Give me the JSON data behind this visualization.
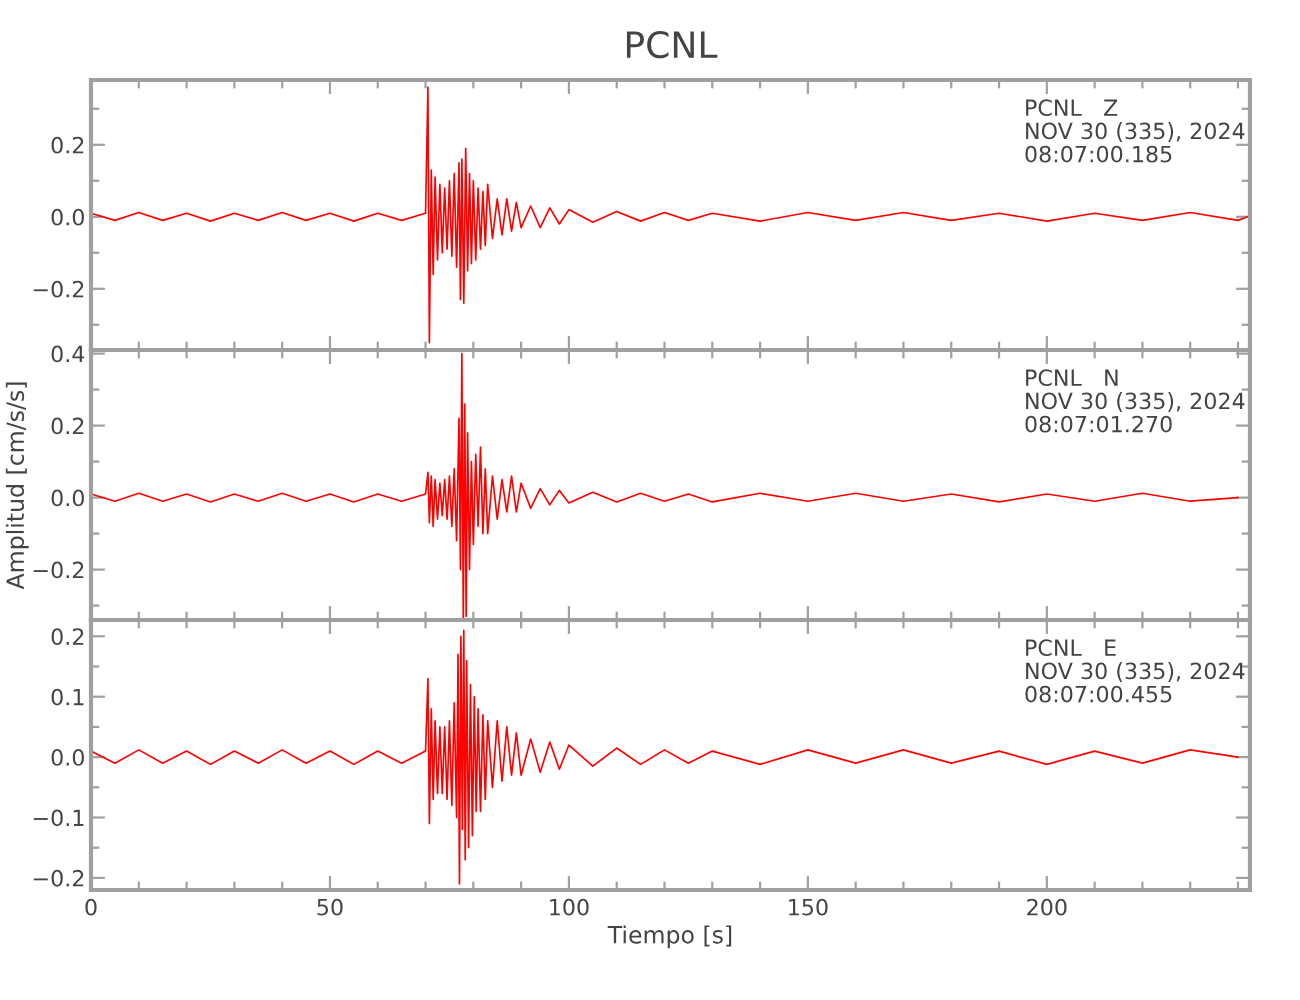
{
  "chart_data": [
    {
      "type": "line",
      "title": "PCNL",
      "tick_labels": "y",
      "xlim": [
        0,
        242.5
      ],
      "ylim": [
        -0.37,
        0.38
      ],
      "xticks": [
        0,
        {
          "value": 10,
          "label": null
        },
        {
          "value": 20,
          "label": null
        },
        {
          "value": 30,
          "label": null
        },
        {
          "value": 40,
          "label": null
        },
        50,
        {
          "value": 60,
          "label": null
        },
        {
          "value": 70,
          "label": null
        },
        {
          "value": 80,
          "label": null
        },
        {
          "value": 90,
          "label": null
        },
        100,
        {
          "value": 110,
          "label": null
        },
        {
          "value": 120,
          "label": null
        },
        {
          "value": 130,
          "label": null
        },
        {
          "value": 140,
          "label": null
        },
        150,
        {
          "value": 160,
          "label": null
        },
        {
          "value": 170,
          "label": null
        },
        {
          "value": 180,
          "label": null
        },
        {
          "value": 190,
          "label": null
        },
        200,
        {
          "value": 210,
          "label": null
        },
        {
          "value": 220,
          "label": null
        },
        {
          "value": 230,
          "label": null
        },
        {
          "value": 240,
          "label": null
        }
      ],
      "yticks": [
        {
          "value": -0.3,
          "label": null
        },
        {
          "value": -0.2,
          "label": "−0.2"
        },
        {
          "value": -0.1,
          "label": null
        },
        {
          "value": 0,
          "label": "0.0"
        },
        {
          "value": 0.1,
          "label": null
        },
        0.2,
        {
          "value": 0.3,
          "label": null
        }
      ],
      "annotations": [
        "PCNL   Z\nNOV 30 (335), 2024\n08:07:00.185"
      ],
      "series": [
        {
          "color": "#ff0000",
          "x": [
            0,
            5,
            10,
            15,
            20,
            25,
            30,
            35,
            40,
            45,
            50,
            55,
            60,
            65,
            70,
            70.5,
            70.8,
            71.2,
            71.6,
            72,
            72.5,
            73,
            73.5,
            74,
            74.5,
            75,
            75.5,
            76,
            76.5,
            77,
            77.3,
            77.6,
            78,
            78.4,
            78.8,
            79.2,
            79.6,
            80,
            80.5,
            81,
            81.5,
            82,
            82.5,
            83,
            84,
            85,
            86,
            87,
            88,
            89,
            90,
            92,
            94,
            96,
            98,
            100,
            105,
            110,
            115,
            120,
            125,
            130,
            140,
            150,
            160,
            170,
            180,
            190,
            200,
            210,
            220,
            230,
            240,
            242
          ],
          "values": [
            0.01,
            -0.01,
            0.012,
            -0.01,
            0.01,
            -0.012,
            0.01,
            -0.01,
            0.012,
            -0.01,
            0.01,
            -0.012,
            0.01,
            -0.01,
            0.01,
            0.36,
            -0.35,
            0.13,
            -0.16,
            0.11,
            -0.12,
            0.09,
            -0.1,
            0.08,
            -0.09,
            0.1,
            -0.11,
            0.12,
            -0.14,
            0.15,
            -0.23,
            0.16,
            -0.24,
            0.19,
            -0.15,
            0.12,
            -0.13,
            0.1,
            -0.12,
            0.08,
            -0.09,
            0.07,
            -0.08,
            0.09,
            -0.06,
            0.05,
            -0.05,
            0.05,
            -0.04,
            0.04,
            -0.03,
            0.03,
            -0.03,
            0.025,
            -0.02,
            0.02,
            -0.015,
            0.015,
            -0.012,
            0.012,
            -0.01,
            0.01,
            -0.012,
            0.012,
            -0.01,
            0.012,
            -0.01,
            0.01,
            -0.012,
            0.01,
            -0.01,
            0.012,
            -0.01,
            0.0
          ]
        }
      ]
    },
    {
      "type": "line",
      "ylabel": "Amplitud [cm/s/s]",
      "tick_labels": "y",
      "xlim": [
        0,
        242.5
      ],
      "ylim": [
        -0.34,
        0.41
      ],
      "xticks": [
        0,
        {
          "value": 10,
          "label": null
        },
        {
          "value": 20,
          "label": null
        },
        {
          "value": 30,
          "label": null
        },
        {
          "value": 40,
          "label": null
        },
        50,
        {
          "value": 60,
          "label": null
        },
        {
          "value": 70,
          "label": null
        },
        {
          "value": 80,
          "label": null
        },
        {
          "value": 90,
          "label": null
        },
        100,
        {
          "value": 110,
          "label": null
        },
        {
          "value": 120,
          "label": null
        },
        {
          "value": 130,
          "label": null
        },
        {
          "value": 140,
          "label": null
        },
        150,
        {
          "value": 160,
          "label": null
        },
        {
          "value": 170,
          "label": null
        },
        {
          "value": 180,
          "label": null
        },
        {
          "value": 190,
          "label": null
        },
        200,
        {
          "value": 210,
          "label": null
        },
        {
          "value": 220,
          "label": null
        },
        {
          "value": 230,
          "label": null
        },
        {
          "value": 240,
          "label": null
        }
      ],
      "yticks": [
        {
          "value": -0.3,
          "label": null
        },
        {
          "value": -0.2,
          "label": "−0.2"
        },
        {
          "value": -0.1,
          "label": null
        },
        {
          "value": 0,
          "label": "0.0"
        },
        {
          "value": 0.1,
          "label": null
        },
        0.2,
        {
          "value": 0.3,
          "label": null
        },
        0.4
      ],
      "annotations": [
        "PCNL   N\nNOV 30 (335), 2024\n08:07:01.270"
      ],
      "series": [
        {
          "color": "#ff0000",
          "x": [
            0,
            5,
            10,
            15,
            20,
            25,
            30,
            35,
            40,
            45,
            50,
            55,
            60,
            65,
            70,
            70.5,
            70.8,
            71.2,
            71.6,
            72,
            72.5,
            73,
            73.5,
            74,
            74.5,
            75,
            75.5,
            76,
            76.5,
            77,
            77.3,
            77.6,
            77.9,
            78.2,
            78.5,
            78.8,
            79.2,
            79.6,
            80,
            80.5,
            81,
            81.5,
            82,
            82.5,
            83,
            84,
            85,
            86,
            87,
            88,
            89,
            90,
            92,
            94,
            96,
            98,
            100,
            105,
            110,
            115,
            120,
            125,
            130,
            140,
            150,
            160,
            170,
            180,
            190,
            200,
            210,
            220,
            230,
            240
          ],
          "values": [
            0.01,
            -0.01,
            0.012,
            -0.01,
            0.01,
            -0.012,
            0.01,
            -0.01,
            0.012,
            -0.01,
            0.01,
            -0.012,
            0.01,
            -0.01,
            0.01,
            0.07,
            -0.07,
            0.06,
            -0.08,
            0.05,
            -0.06,
            0.04,
            -0.05,
            0.05,
            -0.06,
            0.06,
            -0.08,
            0.08,
            -0.12,
            0.22,
            -0.2,
            0.4,
            -0.34,
            0.26,
            -0.33,
            0.18,
            -0.2,
            0.1,
            -0.13,
            0.12,
            -0.08,
            0.14,
            -0.1,
            0.08,
            -0.1,
            0.06,
            -0.06,
            0.05,
            -0.04,
            0.06,
            -0.04,
            0.04,
            -0.03,
            0.025,
            -0.02,
            0.02,
            -0.015,
            0.015,
            -0.012,
            0.012,
            -0.01,
            0.01,
            -0.012,
            0.012,
            -0.01,
            0.012,
            -0.01,
            0.01,
            -0.012,
            0.01,
            -0.01,
            0.012,
            -0.01,
            0.0
          ]
        }
      ]
    },
    {
      "type": "line",
      "xlabel": "Tiempo [s]",
      "xlim": [
        0,
        242.5
      ],
      "ylim": [
        -0.22,
        0.227
      ],
      "xticks": [
        0,
        {
          "value": 10,
          "label": null
        },
        {
          "value": 20,
          "label": null
        },
        {
          "value": 30,
          "label": null
        },
        {
          "value": 40,
          "label": null
        },
        50,
        {
          "value": 60,
          "label": null
        },
        {
          "value": 70,
          "label": null
        },
        {
          "value": 80,
          "label": null
        },
        {
          "value": 90,
          "label": null
        },
        100,
        {
          "value": 110,
          "label": null
        },
        {
          "value": 120,
          "label": null
        },
        {
          "value": 130,
          "label": null
        },
        {
          "value": 140,
          "label": null
        },
        150,
        {
          "value": 160,
          "label": null
        },
        {
          "value": 170,
          "label": null
        },
        {
          "value": 180,
          "label": null
        },
        {
          "value": 190,
          "label": null
        },
        200,
        {
          "value": 210,
          "label": null
        },
        {
          "value": 220,
          "label": null
        },
        {
          "value": 230,
          "label": null
        },
        {
          "value": 240,
          "label": null
        }
      ],
      "yticks": [
        {
          "value": -0.2,
          "label": "−0.2"
        },
        {
          "value": -0.15,
          "label": null
        },
        {
          "value": -0.1,
          "label": "−0.1"
        },
        {
          "value": -0.05,
          "label": null
        },
        {
          "value": 0,
          "label": "0.0"
        },
        {
          "value": 0.05,
          "label": null
        },
        0.1,
        {
          "value": 0.15,
          "label": null
        },
        0.2
      ],
      "annotations": [
        "PCNL   E\nNOV 30 (335), 2024\n08:07:00.455"
      ],
      "series": [
        {
          "color": "#ff0000",
          "x": [
            0,
            5,
            10,
            15,
            20,
            25,
            30,
            35,
            40,
            45,
            50,
            55,
            60,
            65,
            70,
            70.5,
            70.8,
            71.2,
            71.6,
            72,
            72.5,
            73,
            73.5,
            74,
            74.5,
            75,
            75.5,
            76,
            76.5,
            76.8,
            77.1,
            77.4,
            77.7,
            78,
            78.3,
            78.6,
            79,
            79.4,
            79.8,
            80.2,
            80.6,
            81,
            81.5,
            82,
            82.5,
            83,
            84,
            85,
            86,
            87,
            88,
            89,
            90,
            92,
            94,
            96,
            98,
            100,
            105,
            110,
            115,
            120,
            125,
            130,
            140,
            150,
            160,
            170,
            180,
            190,
            200,
            210,
            220,
            230,
            240
          ],
          "values": [
            0.01,
            -0.01,
            0.012,
            -0.01,
            0.01,
            -0.012,
            0.01,
            -0.01,
            0.012,
            -0.01,
            0.01,
            -0.012,
            0.01,
            -0.01,
            0.01,
            0.13,
            -0.11,
            0.08,
            -0.07,
            0.06,
            -0.06,
            0.05,
            -0.06,
            0.05,
            -0.07,
            0.06,
            -0.08,
            0.09,
            -0.1,
            0.17,
            -0.21,
            0.2,
            -0.12,
            0.21,
            -0.17,
            0.16,
            -0.15,
            0.12,
            -0.13,
            0.1,
            -0.09,
            0.08,
            -0.09,
            0.07,
            -0.07,
            0.06,
            -0.05,
            0.06,
            -0.04,
            0.05,
            -0.03,
            0.04,
            -0.03,
            0.03,
            -0.025,
            0.025,
            -0.02,
            0.02,
            -0.015,
            0.015,
            -0.012,
            0.012,
            -0.01,
            0.01,
            -0.012,
            0.012,
            -0.01,
            0.012,
            -0.01,
            0.01,
            -0.012,
            0.01,
            -0.01,
            0.012,
            0.0
          ]
        }
      ]
    }
  ]
}
